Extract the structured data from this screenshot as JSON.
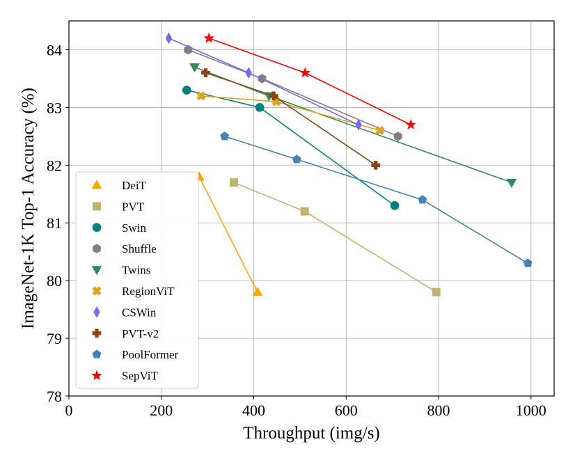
{
  "chart_data": {
    "type": "line",
    "xlabel": "Throughput (img/s)",
    "ylabel": "ImageNet-1K Top-1 Accuracy (%)",
    "xlim": [
      0,
      1050
    ],
    "ylim": [
      78,
      84.5
    ],
    "xticks": [
      "0",
      "200",
      "400",
      "600",
      "800",
      "1000"
    ],
    "yticks": [
      "78",
      "79",
      "80",
      "81",
      "82",
      "83",
      "84"
    ],
    "grid": true,
    "legend_position": "lower-left",
    "series": [
      {
        "name": "DeiT",
        "color": "#FFA500",
        "marker": "triangle-up",
        "x": [
          282,
          408
        ],
        "y": [
          81.8,
          79.8
        ]
      },
      {
        "name": "PVT",
        "color": "#BDB76B",
        "marker": "square",
        "x": [
          357,
          510,
          795
        ],
        "y": [
          81.7,
          81.2,
          79.8
        ]
      },
      {
        "name": "Swin",
        "color": "#008080",
        "marker": "circle",
        "x": [
          255,
          413,
          705
        ],
        "y": [
          83.3,
          83.0,
          81.3
        ]
      },
      {
        "name": "Shuffle",
        "color": "#808080",
        "marker": "hexagon",
        "x": [
          258,
          418,
          712
        ],
        "y": [
          84.0,
          83.5,
          82.5
        ]
      },
      {
        "name": "Twins",
        "color": "#2E8B57",
        "marker": "triangle-down",
        "x": [
          272,
          433,
          958
        ],
        "y": [
          83.7,
          83.2,
          81.7
        ]
      },
      {
        "name": "RegionViT",
        "color": "#DAA520",
        "marker": "x-thick",
        "x": [
          286,
          449,
          673
        ],
        "y": [
          83.2,
          83.1,
          82.6
        ]
      },
      {
        "name": "CSWin",
        "color": "#7B68EE",
        "marker": "diamond-thin",
        "x": [
          216,
          389,
          627
        ],
        "y": [
          84.2,
          83.6,
          82.7
        ]
      },
      {
        "name": "PVT-v2",
        "color": "#8B4513",
        "marker": "plus-thick",
        "x": [
          296,
          443,
          664
        ],
        "y": [
          83.6,
          83.2,
          82.0
        ]
      },
      {
        "name": "PoolFormer",
        "color": "#4682B4",
        "marker": "pentagon",
        "x": [
          337,
          493,
          765,
          993
        ],
        "y": [
          82.5,
          82.1,
          81.4,
          80.3
        ]
      },
      {
        "name": "SepViT",
        "color": "#FF0000",
        "marker": "star",
        "x": [
          303,
          511,
          740
        ],
        "y": [
          84.2,
          83.6,
          82.7
        ]
      }
    ]
  }
}
